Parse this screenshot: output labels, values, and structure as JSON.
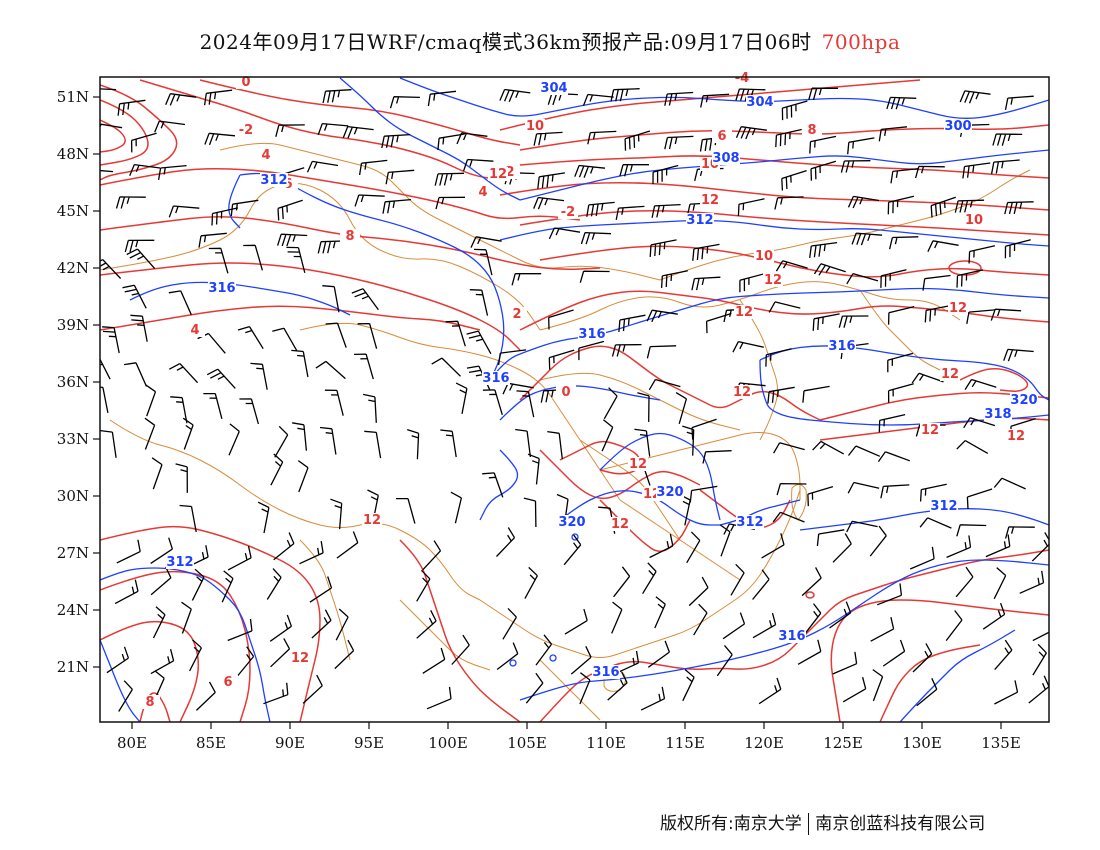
{
  "title": {
    "main": "2024年09月17日WRF/cmaq模式36km预报产品:09月17日06时",
    "level": "700hpa"
  },
  "colors": {
    "temperature": "#e53935",
    "geopotential": "#1e40ff",
    "border": "#d98c3a",
    "wind": "#000000"
  },
  "axes": {
    "lat_labels": [
      "51N",
      "48N",
      "45N",
      "42N",
      "39N",
      "36N",
      "33N",
      "30N",
      "27N",
      "24N",
      "21N"
    ],
    "lon_labels": [
      "80E",
      "85E",
      "90E",
      "95E",
      "100E",
      "105E",
      "110E",
      "115E",
      "120E",
      "125E",
      "130E",
      "135E"
    ]
  },
  "temperature_labels": [
    "0",
    "-2",
    "4",
    "-4",
    "2",
    "10",
    "12",
    "6",
    "8",
    "4",
    "0",
    "-2",
    "2",
    "4",
    "6",
    "8",
    "10",
    "12",
    "10",
    "12",
    "12",
    "12",
    "12",
    "12",
    "12",
    "12",
    "12",
    "12",
    "12",
    "12",
    "12",
    "6",
    "8",
    "10"
  ],
  "height_labels": [
    "304",
    "304",
    "300",
    "308",
    "312",
    "312",
    "316",
    "316",
    "316",
    "316",
    "318",
    "320",
    "320",
    "320",
    "312",
    "312",
    "312",
    "316",
    "316"
  ],
  "copyright": {
    "left": "版权所有:南京大学",
    "right": "南京创蓝科技有限公司"
  }
}
